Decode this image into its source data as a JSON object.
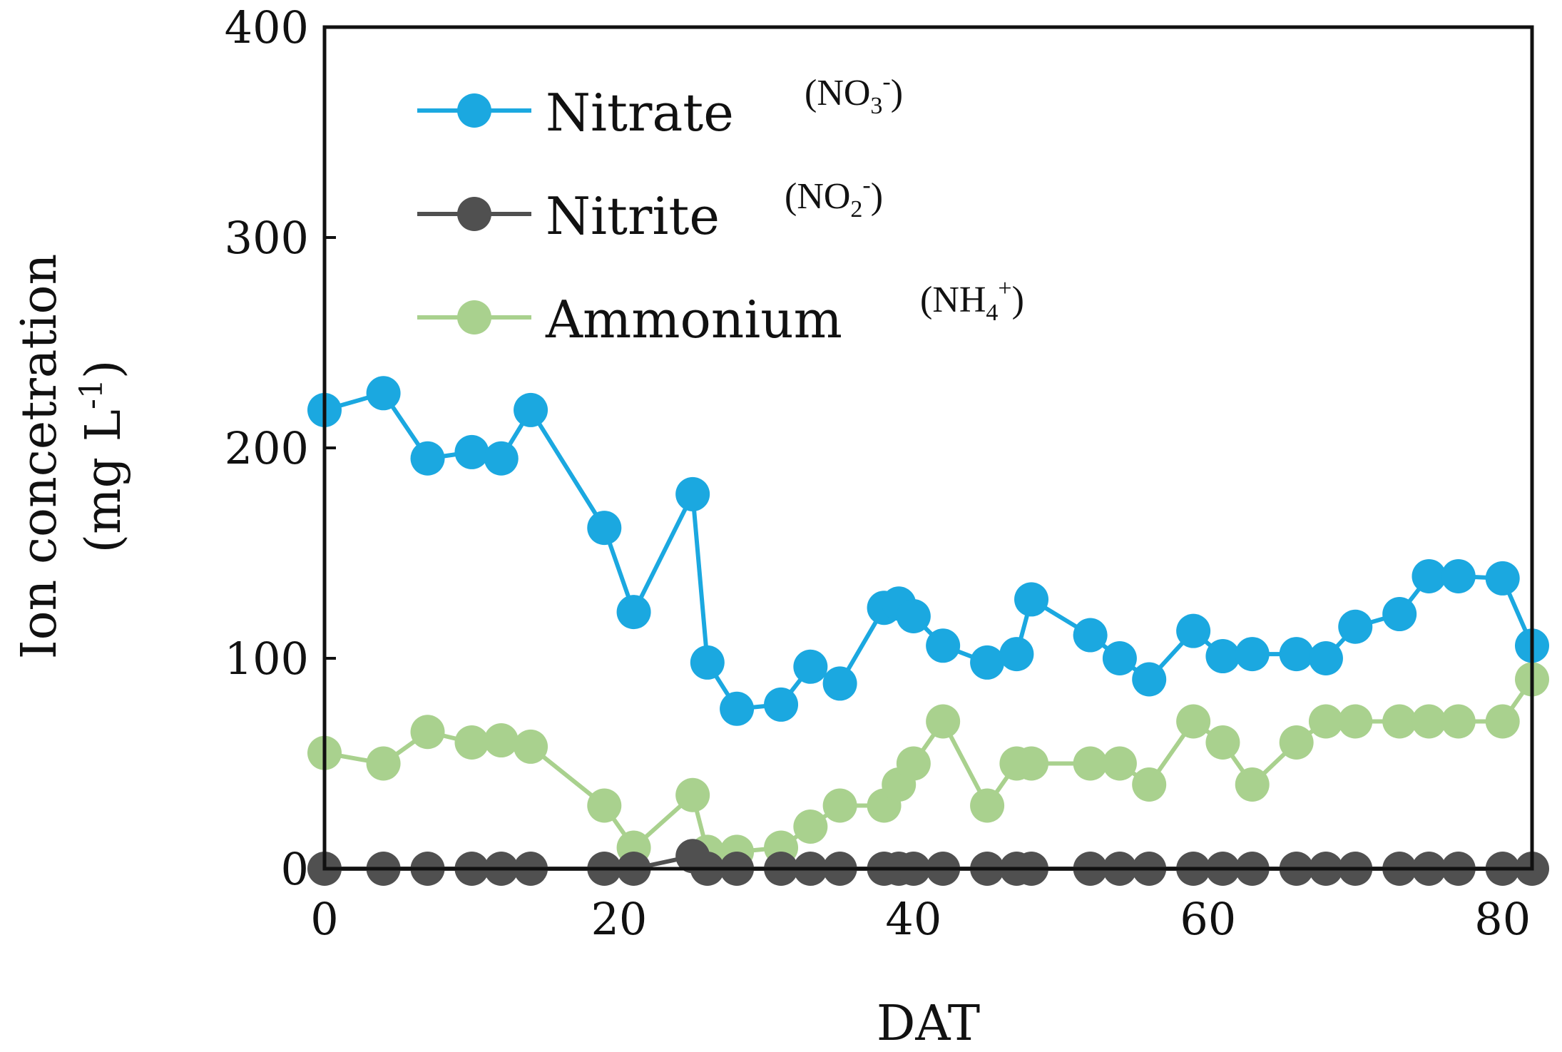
{
  "chart_data": {
    "type": "line",
    "xlabel": "DAT",
    "ylabel": [
      "Ion concetration",
      "(mg L",
      "-1",
      ")"
    ],
    "xlim": [
      0,
      82
    ],
    "ylim": [
      0,
      400
    ],
    "x_ticks": [
      0,
      20,
      40,
      60,
      80
    ],
    "y_ticks": [
      0,
      100,
      200,
      300,
      400
    ],
    "grid": false,
    "legend_position": "top-left",
    "series": [
      {
        "name": "Nitrate",
        "formula": {
          "base": "(NO",
          "sub": "3",
          "sup": "-",
          "close": ")"
        },
        "color": "#1BA8E0",
        "x": [
          0,
          4,
          7,
          10,
          12,
          14,
          19,
          21,
          25,
          26,
          28,
          31,
          33,
          35,
          38,
          39,
          40,
          42,
          45,
          47,
          48,
          52,
          54,
          56,
          59,
          61,
          63,
          66,
          68,
          70,
          73,
          75,
          77,
          80,
          82
        ],
        "y": [
          218,
          226,
          195,
          198,
          195,
          218,
          162,
          122,
          178,
          98,
          76,
          78,
          96,
          88,
          124,
          126,
          120,
          106,
          98,
          102,
          128,
          111,
          100,
          90,
          113,
          101,
          102,
          102,
          100,
          115,
          121,
          139,
          139,
          138,
          106
        ]
      },
      {
        "name": "Nitrite",
        "formula": {
          "base": "(NO",
          "sub": "2",
          "sup": "-",
          "close": ")"
        },
        "color": "#505050",
        "x": [
          0,
          4,
          7,
          10,
          12,
          14,
          19,
          21,
          25,
          26,
          28,
          31,
          33,
          35,
          38,
          39,
          40,
          42,
          45,
          47,
          48,
          52,
          54,
          56,
          59,
          61,
          63,
          66,
          68,
          70,
          73,
          75,
          77,
          80,
          82
        ],
        "y": [
          0,
          0,
          0,
          0,
          0,
          0,
          0,
          0,
          6,
          0,
          0,
          0,
          0,
          0,
          0,
          0,
          0,
          0,
          0,
          0,
          0,
          0,
          0,
          0,
          0,
          0,
          0,
          0,
          0,
          0,
          0,
          0,
          0,
          0,
          0
        ]
      },
      {
        "name": "Ammonium",
        "formula": {
          "base": "(NH",
          "sub": "4",
          "sup": "+",
          "close": ")"
        },
        "color": "#A9D18E",
        "x": [
          0,
          4,
          7,
          10,
          12,
          14,
          19,
          21,
          25,
          26,
          28,
          31,
          33,
          35,
          38,
          39,
          40,
          42,
          45,
          47,
          48,
          52,
          54,
          56,
          59,
          61,
          63,
          66,
          68,
          70,
          73,
          75,
          77,
          80,
          82
        ],
        "y": [
          55,
          50,
          65,
          60,
          61,
          58,
          30,
          10,
          35,
          8,
          8,
          10,
          20,
          30,
          30,
          40,
          50,
          70,
          30,
          50,
          50,
          50,
          50,
          40,
          70,
          60,
          40,
          60,
          70,
          70,
          70,
          70,
          70,
          70,
          90
        ]
      }
    ]
  }
}
